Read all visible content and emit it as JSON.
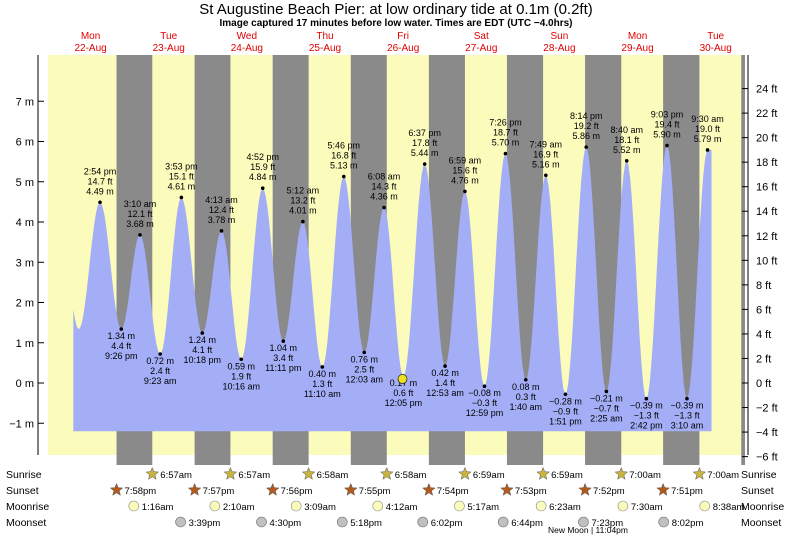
{
  "title": "St Augustine Beach Pier: at low  ordinary tide at 0.1m (0.2ft)",
  "subtitle": "Image captured 17 minutes before low water. Times are EDT (UTC −4.0hrs)",
  "colors": {
    "day_bg": "#fbfbbc",
    "night_bg": "#8a8a8a",
    "water": "#a3aef6",
    "day_label": "#e00000",
    "now_marker": "#f0e020",
    "sunrise_star": "#c8b440",
    "sunset_star": "#b05a1e",
    "moonrise": "#fbfbbc",
    "moonset": "#c0c0c0"
  },
  "days": [
    {
      "name": "Mon",
      "date": "22-Aug"
    },
    {
      "name": "Tue",
      "date": "23-Aug"
    },
    {
      "name": "Wed",
      "date": "24-Aug"
    },
    {
      "name": "Thu",
      "date": "25-Aug"
    },
    {
      "name": "Fri",
      "date": "26-Aug"
    },
    {
      "name": "Sat",
      "date": "27-Aug"
    },
    {
      "name": "Sun",
      "date": "28-Aug"
    },
    {
      "name": "Mon",
      "date": "29-Aug"
    },
    {
      "name": "Tue",
      "date": "30-Aug"
    }
  ],
  "row_labels": {
    "sunrise": "Sunrise",
    "sunset": "Sunset",
    "moonrise": "Moonrise",
    "moonset": "Moonset"
  },
  "new_moon_note": "New Moon | 11:04pm",
  "chart_data": {
    "type": "area",
    "x_unit": "hours since Mon 22-Aug 00:00",
    "y_unit": "m",
    "ylim": [
      -1.2,
      7.5
    ],
    "left_axis_ticks": [
      "−1 m",
      "0 m",
      "1 m",
      "2 m",
      "3 m",
      "4 m",
      "5 m",
      "6 m",
      "7 m"
    ],
    "left_axis_values": [
      -1,
      0,
      1,
      2,
      3,
      4,
      5,
      6,
      7
    ],
    "right_axis_ticks": [
      "−6 ft",
      "−4 ft",
      "−2 ft",
      "0 ft",
      "2 ft",
      "4 ft",
      "6 ft",
      "8 ft",
      "10 ft",
      "12 ft",
      "14 ft",
      "16 ft",
      "18 ft",
      "20 ft",
      "22 ft",
      "24 ft"
    ],
    "right_axis_values_ft": [
      -6,
      -4,
      -2,
      0,
      2,
      4,
      6,
      8,
      10,
      12,
      14,
      16,
      18,
      20,
      22,
      24
    ],
    "tide_extremes": [
      {
        "hour": 14.9,
        "time": "2:54 pm",
        "ft": "14.7 ft",
        "m": "4.49 m",
        "value_m": 4.49,
        "kind": "high"
      },
      {
        "hour": 21.43,
        "time": "9:26 pm",
        "ft": "4.4 ft",
        "m": "1.34 m",
        "value_m": 1.34,
        "kind": "low"
      },
      {
        "hour": 27.17,
        "time": "3:10 am",
        "ft": "12.1 ft",
        "m": "3.68 m",
        "value_m": 3.68,
        "kind": "high"
      },
      {
        "hour": 33.38,
        "time": "9:23 am",
        "ft": "2.4 ft",
        "m": "0.72 m",
        "value_m": 0.72,
        "kind": "low"
      },
      {
        "hour": 39.88,
        "time": "3:53 pm",
        "ft": "15.1 ft",
        "m": "4.61 m",
        "value_m": 4.61,
        "kind": "high"
      },
      {
        "hour": 46.3,
        "time": "10:18 pm",
        "ft": "4.1 ft",
        "m": "1.24 m",
        "value_m": 1.24,
        "kind": "low"
      },
      {
        "hour": 52.22,
        "time": "4:13 am",
        "ft": "12.4 ft",
        "m": "3.78 m",
        "value_m": 3.78,
        "kind": "high"
      },
      {
        "hour": 58.27,
        "time": "10:16 am",
        "ft": "1.9 ft",
        "m": "0.59 m",
        "value_m": 0.59,
        "kind": "low"
      },
      {
        "hour": 64.87,
        "time": "4:52 pm",
        "ft": "15.9 ft",
        "m": "4.84 m",
        "value_m": 4.84,
        "kind": "high"
      },
      {
        "hour": 71.18,
        "time": "11:11 pm",
        "ft": "3.4 ft",
        "m": "1.04 m",
        "value_m": 1.04,
        "kind": "low"
      },
      {
        "hour": 77.2,
        "time": "5:12 am",
        "ft": "13.2 ft",
        "m": "4.01 m",
        "value_m": 4.01,
        "kind": "high"
      },
      {
        "hour": 83.17,
        "time": "11:10 am",
        "ft": "1.3 ft",
        "m": "0.40 m",
        "value_m": 0.4,
        "kind": "low"
      },
      {
        "hour": 89.77,
        "time": "5:46 pm",
        "ft": "16.8 ft",
        "m": "5.13 m",
        "value_m": 5.13,
        "kind": "high"
      },
      {
        "hour": 96.05,
        "time": "12:03 am",
        "ft": "2.5 ft",
        "m": "0.76 m",
        "value_m": 0.76,
        "kind": "low"
      },
      {
        "hour": 102.13,
        "time": "6:08 am",
        "ft": "14.3 ft",
        "m": "4.36 m",
        "value_m": 4.36,
        "kind": "high"
      },
      {
        "hour": 108.08,
        "time": "12:05 pm",
        "ft": "0.6 ft",
        "m": "0.17 m",
        "value_m": 0.17,
        "kind": "low"
      },
      {
        "hour": 114.62,
        "time": "6:37 pm",
        "ft": "17.8 ft",
        "m": "5.44 m",
        "value_m": 5.44,
        "kind": "high"
      },
      {
        "hour": 120.88,
        "time": "12:53 am",
        "ft": "1.4 ft",
        "m": "0.42 m",
        "value_m": 0.42,
        "kind": "low"
      },
      {
        "hour": 126.98,
        "time": "6:59 am",
        "ft": "15.6 ft",
        "m": "4.76 m",
        "value_m": 4.76,
        "kind": "high"
      },
      {
        "hour": 132.98,
        "time": "12:59 pm",
        "ft": "−0.3 ft",
        "m": "−0.08 m",
        "value_m": -0.08,
        "kind": "low"
      },
      {
        "hour": 139.43,
        "time": "7:26 pm",
        "ft": "18.7 ft",
        "m": "5.70 m",
        "value_m": 5.7,
        "kind": "high"
      },
      {
        "hour": 145.67,
        "time": "1:40 am",
        "ft": "0.3 ft",
        "m": "0.08 m",
        "value_m": 0.08,
        "kind": "low"
      },
      {
        "hour": 151.82,
        "time": "7:49 am",
        "ft": "16.9 ft",
        "m": "5.16 m",
        "value_m": 5.16,
        "kind": "high"
      },
      {
        "hour": 157.85,
        "time": "1:51 pm",
        "ft": "−0.9 ft",
        "m": "−0.28 m",
        "value_m": -0.28,
        "kind": "low"
      },
      {
        "hour": 164.23,
        "time": "8:14 pm",
        "ft": "19.2 ft",
        "m": "5.86 m",
        "value_m": 5.86,
        "kind": "high"
      },
      {
        "hour": 170.42,
        "time": "2:25 am",
        "ft": "−0.7 ft",
        "m": "−0.21 m",
        "value_m": -0.21,
        "kind": "low"
      },
      {
        "hour": 176.67,
        "time": "8:40 am",
        "ft": "18.1 ft",
        "m": "5.52 m",
        "value_m": 5.52,
        "kind": "high"
      },
      {
        "hour": 182.7,
        "time": "2:42 pm",
        "ft": "−1.3 ft",
        "m": "−0.39 m",
        "value_m": -0.39,
        "kind": "low"
      },
      {
        "hour": 189.05,
        "time": "9:03 pm",
        "ft": "19.4 ft",
        "m": "5.90 m",
        "value_m": 5.9,
        "kind": "high"
      },
      {
        "hour": 195.17,
        "time": "3:10 am",
        "ft": "−1.3 ft",
        "m": "−0.39 m",
        "value_m": -0.39,
        "kind": "low"
      },
      {
        "hour": 201.5,
        "time": "9:30 am",
        "ft": "19.0 ft",
        "m": "5.79 m",
        "value_m": 5.79,
        "kind": "high"
      }
    ],
    "current": {
      "hour": 107.8,
      "value_m": 0.1
    },
    "sunrise": [
      {
        "hour": 30.95,
        "time": "6:57am"
      },
      {
        "hour": 54.95,
        "time": "6:57am"
      },
      {
        "hour": 78.97,
        "time": "6:58am"
      },
      {
        "hour": 102.97,
        "time": "6:58am"
      },
      {
        "hour": 126.98,
        "time": "6:59am"
      },
      {
        "hour": 150.98,
        "time": "6:59am"
      },
      {
        "hour": 175.0,
        "time": "7:00am"
      },
      {
        "hour": 199.0,
        "time": "7:00am"
      }
    ],
    "sunset": [
      {
        "hour": 19.97,
        "time": "7:58pm"
      },
      {
        "hour": 43.95,
        "time": "7:57pm"
      },
      {
        "hour": 67.93,
        "time": "7:56pm"
      },
      {
        "hour": 91.92,
        "time": "7:55pm"
      },
      {
        "hour": 115.9,
        "time": "7:54pm"
      },
      {
        "hour": 139.88,
        "time": "7:53pm"
      },
      {
        "hour": 163.87,
        "time": "7:52pm"
      },
      {
        "hour": 187.85,
        "time": "7:51pm"
      }
    ],
    "moonrise": [
      {
        "hour": 25.27,
        "time": "1:16am"
      },
      {
        "hour": 50.17,
        "time": "2:10am"
      },
      {
        "hour": 75.15,
        "time": "3:09am"
      },
      {
        "hour": 100.2,
        "time": "4:12am"
      },
      {
        "hour": 125.28,
        "time": "5:17am"
      },
      {
        "hour": 150.38,
        "time": "6:23am"
      },
      {
        "hour": 175.5,
        "time": "7:30am"
      },
      {
        "hour": 200.63,
        "time": "8:38am"
      }
    ],
    "moonset": [
      {
        "hour": 39.65,
        "time": "3:39pm"
      },
      {
        "hour": 64.5,
        "time": "4:30pm"
      },
      {
        "hour": 89.3,
        "time": "5:18pm"
      },
      {
        "hour": 114.03,
        "time": "6:02pm"
      },
      {
        "hour": 138.73,
        "time": "6:44pm"
      },
      {
        "hour": 163.38,
        "time": "7:23pm"
      },
      {
        "hour": 188.03,
        "time": "8:02pm"
      }
    ]
  }
}
